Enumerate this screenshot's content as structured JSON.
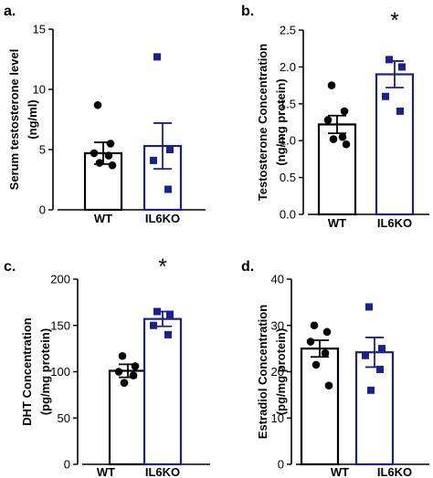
{
  "colors": {
    "wt": "#000000",
    "ko": "#1c1f8c",
    "axis": "#000000"
  },
  "chart_data": [
    {
      "panel_label": "a.",
      "type": "bar",
      "ylabel_lines": [
        "Serum testosterone level",
        "(ng/ml)"
      ],
      "ylim": [
        0,
        15
      ],
      "yticks": [
        0,
        5,
        10,
        15
      ],
      "categories": [
        "WT",
        "IL6KO"
      ],
      "values": [
        4.7,
        5.3
      ],
      "sem": [
        0.9,
        1.9
      ],
      "significance": "",
      "points": [
        [
          8.7,
          5.5,
          4.7,
          4.5,
          3.9,
          3.7
        ],
        [
          12.7,
          5.0,
          4.1,
          1.7
        ]
      ]
    },
    {
      "panel_label": "b.",
      "type": "bar",
      "ylabel_lines": [
        "Testosterone Concentration",
        "(ng/mg protein)"
      ],
      "ylim": [
        0,
        2.5
      ],
      "yticks": [
        0.0,
        0.5,
        1.0,
        1.5,
        2.0,
        2.5
      ],
      "tick_decimals": 1,
      "categories": [
        "WT",
        "IL6KO"
      ],
      "values": [
        1.22,
        1.9
      ],
      "sem": [
        0.12,
        0.18
      ],
      "significance": "*",
      "points": [
        [
          1.75,
          1.4,
          1.28,
          1.05,
          1.02,
          0.95
        ],
        [
          2.1,
          2.0,
          1.6,
          1.4
        ]
      ]
    },
    {
      "panel_label": "c.",
      "type": "bar",
      "ylabel_lines": [
        "DHT Concentration",
        "(pg/mg protein)"
      ],
      "ylim": [
        0,
        200
      ],
      "yticks": [
        0,
        50,
        100,
        150,
        200
      ],
      "categories": [
        "WT",
        "IL6KO"
      ],
      "values": [
        101,
        157
      ],
      "sem": [
        7,
        8
      ],
      "significance": "*",
      "points": [
        [
          117,
          106,
          100,
          96,
          88
        ],
        [
          165,
          162,
          150,
          140
        ]
      ]
    },
    {
      "panel_label": "d.",
      "type": "bar",
      "ylabel_lines": [
        "Estradiol Concentration",
        "(pg/mg protein)"
      ],
      "ylim": [
        0,
        40
      ],
      "yticks": [
        0,
        10,
        20,
        30,
        40
      ],
      "categories": [
        "WT",
        "IL6KO"
      ],
      "values": [
        25,
        24.2
      ],
      "sem": [
        1.8,
        3.2
      ],
      "significance": "",
      "points": [
        [
          30,
          28.6,
          26.5,
          24,
          21.5,
          17
        ],
        [
          34,
          25,
          23.5,
          20.5,
          16
        ]
      ]
    }
  ]
}
